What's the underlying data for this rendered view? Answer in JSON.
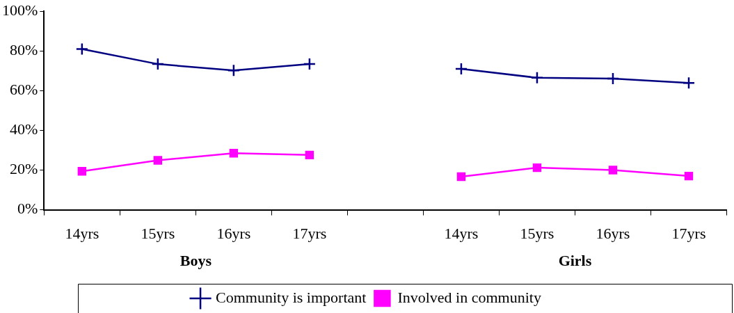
{
  "chart_data": {
    "type": "line",
    "categories": [
      "14yrs",
      "15yrs",
      "16yrs",
      "17yrs",
      null,
      "14yrs",
      "15yrs",
      "16yrs",
      "17yrs"
    ],
    "series": [
      {
        "name": "Community is important",
        "color": "#000080",
        "marker": "cross",
        "values": [
          81,
          73.4,
          70.2,
          73.4,
          null,
          71,
          66.5,
          66.1,
          63.9
        ]
      },
      {
        "name": "Involved in community",
        "color": "#ff00ff",
        "marker": "square",
        "values": [
          19.4,
          24.9,
          28.5,
          27.6,
          null,
          16.7,
          21.2,
          20,
          17
        ]
      }
    ],
    "ylim": [
      0,
      100
    ],
    "yticks": [
      {
        "value": 0,
        "label": "0%"
      },
      {
        "value": 20,
        "label": "20%"
      },
      {
        "value": 40,
        "label": "40%"
      },
      {
        "value": 60,
        "label": "60%"
      },
      {
        "value": 80,
        "label": "80%"
      },
      {
        "value": 100,
        "label": "100%"
      }
    ],
    "annotations": [
      "Boys",
      "Girls"
    ],
    "grid": false,
    "legend": "bottom"
  }
}
